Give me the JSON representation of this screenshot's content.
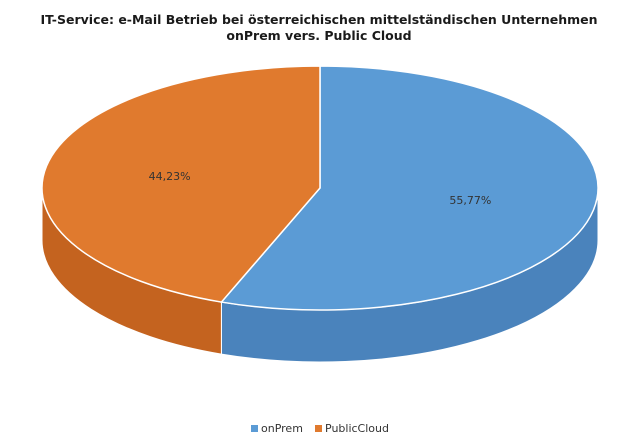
{
  "chart_data": {
    "type": "pie",
    "title_lines": [
      "IT-Service: e-Mail Betrieb bei österreichischen mittelständischen Unternehmen",
      "onPrem vers. Public Cloud"
    ],
    "categories": [
      "onPrem",
      "PublicCloud"
    ],
    "values": [
      55.77,
      44.23
    ],
    "data_labels": [
      "55,77%",
      "44,23%"
    ],
    "colors": [
      "#5b9bd5",
      "#e07a2e"
    ],
    "side_colors": [
      "#4a83bc",
      "#c4631f"
    ],
    "three_d": true,
    "legend_position": "bottom"
  }
}
